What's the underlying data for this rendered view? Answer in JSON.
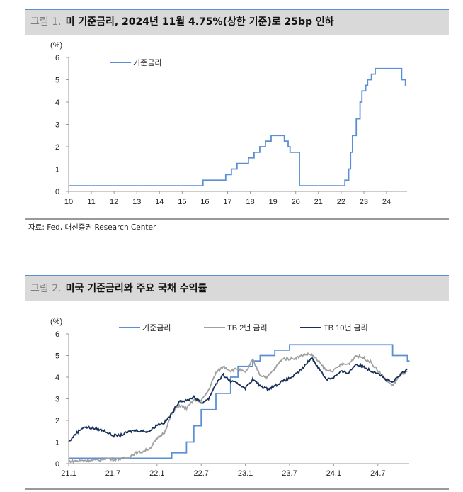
{
  "figure1": {
    "number": "그림 1.",
    "title": "미 기준금리, 2024년 11월 4.75%(상한 기준)로 25bp 인하",
    "source": "자료: Fed, 대신증권 Research Center"
  },
  "figure2": {
    "number": "그림 2.",
    "title": "미국 기준금리와 주요 국채 수익률"
  },
  "chart_data": [
    {
      "type": "line",
      "unit_label": "(%)",
      "ylim": [
        0,
        6
      ],
      "yticks": [
        "0",
        "1",
        "2",
        "3",
        "4",
        "5",
        "6"
      ],
      "xticks": [
        "10",
        "11",
        "12",
        "13",
        "14",
        "15",
        "16",
        "17",
        "18",
        "19",
        "20",
        "21",
        "22",
        "23",
        "24"
      ],
      "legend_position": "top-left",
      "series": [
        {
          "name": "기준금리",
          "color": "#5b8fd4",
          "step": true,
          "points": [
            [
              "2010-01",
              0.25
            ],
            [
              "2015-12",
              0.5
            ],
            [
              "2016-12",
              0.75
            ],
            [
              "2017-03",
              1.0
            ],
            [
              "2017-06",
              1.25
            ],
            [
              "2017-12",
              1.5
            ],
            [
              "2018-03",
              1.75
            ],
            [
              "2018-06",
              2.0
            ],
            [
              "2018-09",
              2.25
            ],
            [
              "2018-12",
              2.5
            ],
            [
              "2019-07",
              2.25
            ],
            [
              "2019-09",
              2.0
            ],
            [
              "2019-10",
              1.75
            ],
            [
              "2020-03",
              1.25
            ],
            [
              "2020-03",
              0.25
            ],
            [
              "2022-03",
              0.5
            ],
            [
              "2022-05",
              1.0
            ],
            [
              "2022-06",
              1.75
            ],
            [
              "2022-07",
              2.5
            ],
            [
              "2022-09",
              3.25
            ],
            [
              "2022-11",
              4.0
            ],
            [
              "2022-12",
              4.5
            ],
            [
              "2023-02",
              4.75
            ],
            [
              "2023-03",
              5.0
            ],
            [
              "2023-05",
              5.25
            ],
            [
              "2023-07",
              5.5
            ],
            [
              "2024-09",
              5.0
            ],
            [
              "2024-11",
              4.75
            ]
          ]
        }
      ]
    },
    {
      "type": "line",
      "unit_label": "(%)",
      "ylim": [
        0,
        6
      ],
      "yticks": [
        "0",
        "1",
        "2",
        "3",
        "4",
        "5",
        "6"
      ],
      "xticks": [
        "21.1",
        "21.7",
        "22.1",
        "22.7",
        "23.1",
        "23.7",
        "24.1",
        "24.7"
      ],
      "legend_position": "top",
      "series": [
        {
          "name": "기준금리",
          "color": "#5b8fd4",
          "step": true,
          "points": [
            [
              "2021-01",
              0.25
            ],
            [
              "2022-03",
              0.5
            ],
            [
              "2022-05",
              1.0
            ],
            [
              "2022-06",
              1.75
            ],
            [
              "2022-07",
              2.5
            ],
            [
              "2022-09",
              3.25
            ],
            [
              "2022-11",
              4.0
            ],
            [
              "2022-12",
              4.5
            ],
            [
              "2023-02",
              4.75
            ],
            [
              "2023-03",
              5.0
            ],
            [
              "2023-05",
              5.25
            ],
            [
              "2023-07",
              5.5
            ],
            [
              "2024-09",
              5.0
            ],
            [
              "2024-11",
              4.75
            ]
          ]
        },
        {
          "name": "TB 2년 금리",
          "color": "#a0a0a0",
          "start": "2021-01",
          "monthly": [
            0.12,
            0.12,
            0.15,
            0.16,
            0.15,
            0.25,
            0.2,
            0.22,
            0.28,
            0.48,
            0.55,
            0.7,
            1.15,
            1.45,
            2.3,
            2.7,
            2.55,
            2.95,
            2.9,
            3.4,
            4.2,
            4.5,
            4.3,
            4.4,
            4.2,
            4.8,
            4.1,
            4.0,
            4.4,
            4.85,
            4.85,
            4.9,
            5.05,
            5.05,
            4.7,
            4.3,
            4.3,
            4.6,
            4.6,
            5.0,
            4.9,
            4.7,
            4.3,
            3.9,
            3.6,
            4.1,
            4.25
          ]
        },
        {
          "name": "TB 10년 금리",
          "color": "#17305a",
          "start": "2021-01",
          "monthly": [
            1.0,
            1.4,
            1.7,
            1.65,
            1.6,
            1.5,
            1.3,
            1.3,
            1.45,
            1.55,
            1.5,
            1.5,
            1.8,
            1.9,
            2.3,
            2.9,
            2.9,
            3.1,
            2.8,
            3.0,
            3.7,
            4.1,
            3.8,
            3.7,
            3.5,
            3.9,
            3.6,
            3.45,
            3.6,
            3.8,
            3.95,
            4.15,
            4.5,
            4.9,
            4.4,
            3.9,
            4.0,
            4.25,
            4.2,
            4.6,
            4.5,
            4.3,
            4.2,
            3.9,
            3.75,
            4.1,
            4.35
          ]
        }
      ]
    }
  ]
}
